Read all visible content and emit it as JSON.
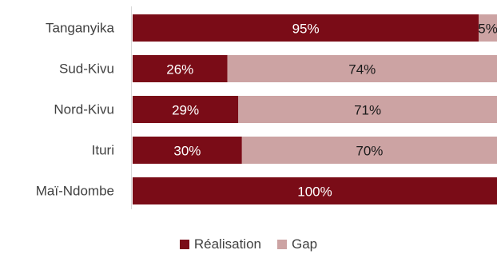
{
  "chart_data": {
    "type": "bar",
    "orientation": "horizontal",
    "stacked": true,
    "categories": [
      "Tanganyika",
      "Sud-Kivu",
      "Nord-Kivu",
      "Ituri",
      "Maï-Ndombe"
    ],
    "series": [
      {
        "name": "Réalisation",
        "values": [
          95,
          26,
          29,
          30,
          100
        ],
        "labels": [
          "95%",
          "26%",
          "29%",
          "30%",
          "100%"
        ],
        "color": "#7a0c17",
        "label_color": "#ffffff"
      },
      {
        "name": "Gap",
        "values": [
          5,
          74,
          71,
          70,
          0
        ],
        "labels": [
          "5%",
          "74%",
          "71%",
          "70%",
          ""
        ],
        "color": "#cca3a3",
        "label_color": "#1a1a1a"
      }
    ],
    "xlim": [
      0,
      100
    ],
    "grid": false,
    "legend_position": "bottom",
    "title": "",
    "xlabel": "",
    "ylabel": ""
  }
}
